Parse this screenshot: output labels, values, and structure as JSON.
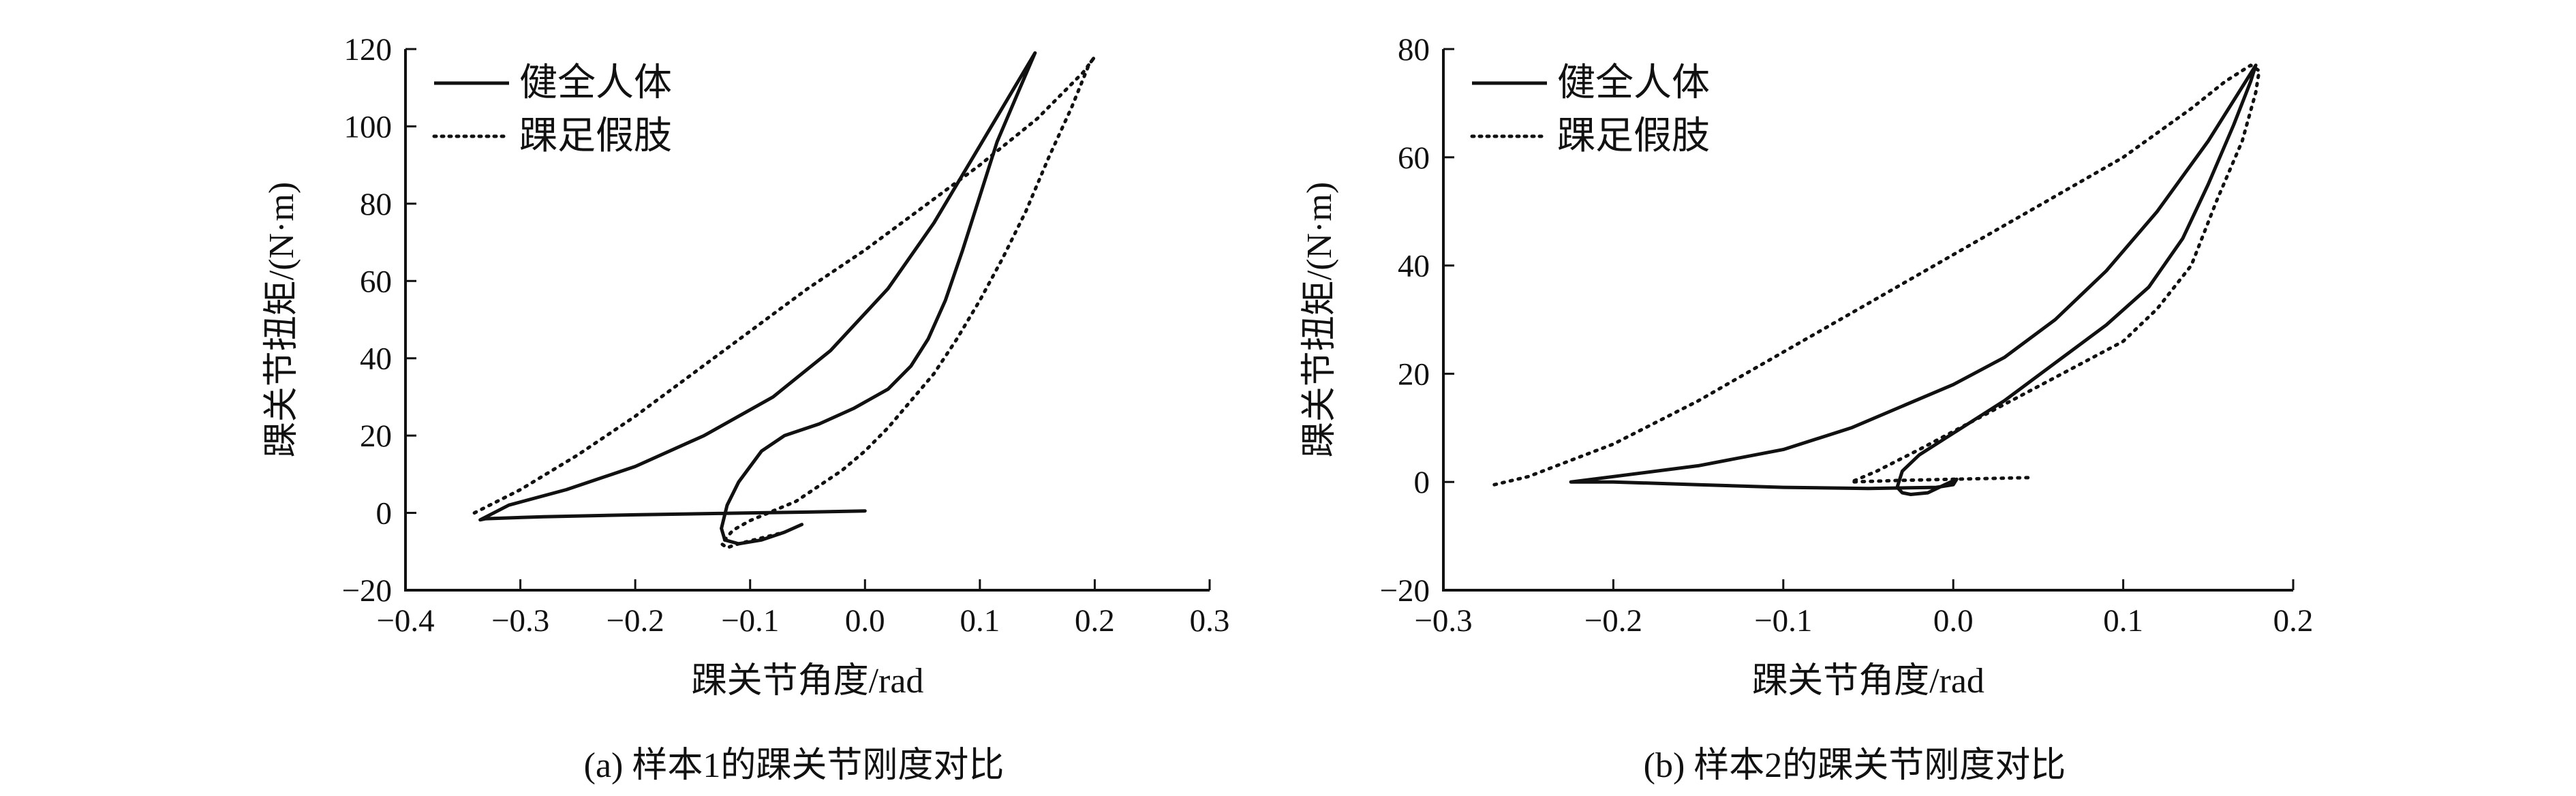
{
  "chart_data": [
    {
      "type": "line",
      "title": "",
      "caption": "(a) 样本1的踝关节刚度对比",
      "xlabel": "踝关节角度/rad",
      "ylabel": "踝关节扭矩/(N·m)",
      "xlim": [
        -0.4,
        0.3
      ],
      "ylim": [
        -20,
        120
      ],
      "xticks": [
        -0.4,
        -0.3,
        -0.2,
        -0.1,
        0.0,
        0.1,
        0.2,
        0.3
      ],
      "xtick_labels": [
        "−0.4",
        "−0.3",
        "−0.2",
        "−0.1",
        "0.0",
        "0.1",
        "0.2",
        "0.3"
      ],
      "yticks": [
        -20,
        0,
        20,
        40,
        60,
        80,
        100,
        120
      ],
      "ytick_labels": [
        "−20",
        "0",
        "20",
        "40",
        "60",
        "80",
        "100",
        "120"
      ],
      "grid": false,
      "legend_position": "top-left",
      "series": [
        {
          "name": "健全人体",
          "style": "solid",
          "x": [
            0.0,
            -0.05,
            -0.1,
            -0.2,
            -0.28,
            -0.33,
            -0.335,
            -0.31,
            -0.26,
            -0.2,
            -0.14,
            -0.08,
            -0.03,
            0.02,
            0.06,
            0.1,
            0.13,
            0.148,
            0.135,
            0.115,
            0.1,
            0.085,
            0.07,
            0.055,
            0.04,
            0.02,
            -0.01,
            -0.04,
            -0.07,
            -0.09,
            -0.11,
            -0.12,
            -0.125,
            -0.122,
            -0.11,
            -0.09,
            -0.07,
            -0.055
          ],
          "y": [
            0.5,
            0.2,
            0.0,
            -0.5,
            -1.0,
            -1.5,
            -1.8,
            2.0,
            6.0,
            12.0,
            20.0,
            30.0,
            42.0,
            58.0,
            75.0,
            95.0,
            110.0,
            119.0,
            110.0,
            96.0,
            82.0,
            68.0,
            55.0,
            45.0,
            38.0,
            32.0,
            27.0,
            23.0,
            20.0,
            16.0,
            8.0,
            2.0,
            -4.0,
            -7.0,
            -8.0,
            -7.0,
            -5.0,
            -3.0
          ]
        },
        {
          "name": "踝足假肢",
          "style": "dotted",
          "x": [
            -0.34,
            -0.3,
            -0.25,
            -0.2,
            -0.15,
            -0.1,
            -0.05,
            0.0,
            0.05,
            0.1,
            0.15,
            0.19,
            0.2,
            0.195,
            0.18,
            0.16,
            0.14,
            0.12,
            0.1,
            0.08,
            0.06,
            0.04,
            0.02,
            0.0,
            -0.02,
            -0.04,
            -0.06,
            -0.08,
            -0.1,
            -0.115,
            -0.125,
            -0.12,
            -0.11,
            -0.09,
            -0.07
          ],
          "y": [
            0.0,
            6.0,
            15.0,
            25.0,
            36.0,
            47.0,
            58.0,
            68.0,
            79.0,
            90.0,
            102.0,
            114.0,
            118.0,
            116.0,
            105.0,
            92.0,
            78.0,
            66.0,
            55.0,
            45.0,
            36.0,
            29.0,
            22.0,
            16.0,
            11.0,
            7.0,
            3.0,
            0.5,
            -2.0,
            -4.5,
            -8.0,
            -9.0,
            -8.0,
            -6.5,
            -5.0
          ]
        }
      ]
    },
    {
      "type": "line",
      "title": "",
      "caption": "(b) 样本2的踝关节刚度对比",
      "xlabel": "踝关节角度/rad",
      "ylabel": "踝关节扭矩/(N·m)",
      "xlim": [
        -0.3,
        0.2
      ],
      "ylim": [
        -20,
        80
      ],
      "xticks": [
        -0.3,
        -0.2,
        -0.1,
        0.0,
        0.1,
        0.2
      ],
      "xtick_labels": [
        "−0.3",
        "−0.2",
        "−0.1",
        "0.0",
        "0.1",
        "0.2"
      ],
      "yticks": [
        -20,
        0,
        20,
        40,
        60,
        80
      ],
      "ytick_labels": [
        "−20",
        "0",
        "20",
        "40",
        "60",
        "80"
      ],
      "grid": false,
      "legend_position": "top-left",
      "series": [
        {
          "name": "健全人体",
          "style": "solid",
          "x": [
            -0.225,
            -0.2,
            -0.15,
            -0.1,
            -0.06,
            -0.03,
            0.0,
            0.03,
            0.06,
            0.09,
            0.12,
            0.15,
            0.17,
            0.178,
            0.175,
            0.165,
            0.15,
            0.135,
            0.115,
            0.09,
            0.06,
            0.03,
            0.0,
            -0.02,
            -0.03,
            -0.033,
            -0.03,
            -0.025,
            -0.015,
            -0.005,
            0.002,
            0.0,
            -0.01,
            -0.05,
            -0.1,
            -0.15,
            -0.2,
            -0.225
          ],
          "y": [
            0.0,
            1.0,
            3.0,
            6.0,
            10.0,
            14.0,
            18.0,
            23.0,
            30.0,
            39.0,
            50.0,
            63.0,
            73.0,
            77.0,
            74.0,
            66.0,
            55.0,
            45.0,
            36.0,
            29.0,
            22.0,
            15.0,
            9.0,
            5.0,
            2.0,
            -1.0,
            -2.0,
            -2.3,
            -2.0,
            -0.5,
            0.5,
            -0.5,
            -1.0,
            -1.2,
            -1.0,
            -0.5,
            0.0,
            0.0
          ]
        },
        {
          "name": "踝足假肢",
          "style": "dotted",
          "x": [
            -0.27,
            -0.25,
            -0.2,
            -0.15,
            -0.1,
            -0.05,
            0.0,
            0.05,
            0.1,
            0.14,
            0.16,
            0.175,
            0.18,
            0.178,
            0.17,
            0.155,
            0.14,
            0.12,
            0.1,
            0.07,
            0.04,
            0.01,
            -0.02,
            -0.045,
            -0.06,
            -0.03,
            0.0,
            0.045
          ],
          "y": [
            -0.5,
            1.0,
            7.0,
            15.0,
            24.0,
            33.0,
            42.0,
            51.0,
            60.0,
            69.0,
            74.0,
            77.0,
            76.0,
            72.0,
            63.0,
            52.0,
            40.0,
            32.0,
            26.0,
            21.0,
            16.0,
            11.0,
            6.0,
            2.0,
            0.0,
            0.3,
            0.5,
            0.8
          ]
        }
      ]
    }
  ]
}
